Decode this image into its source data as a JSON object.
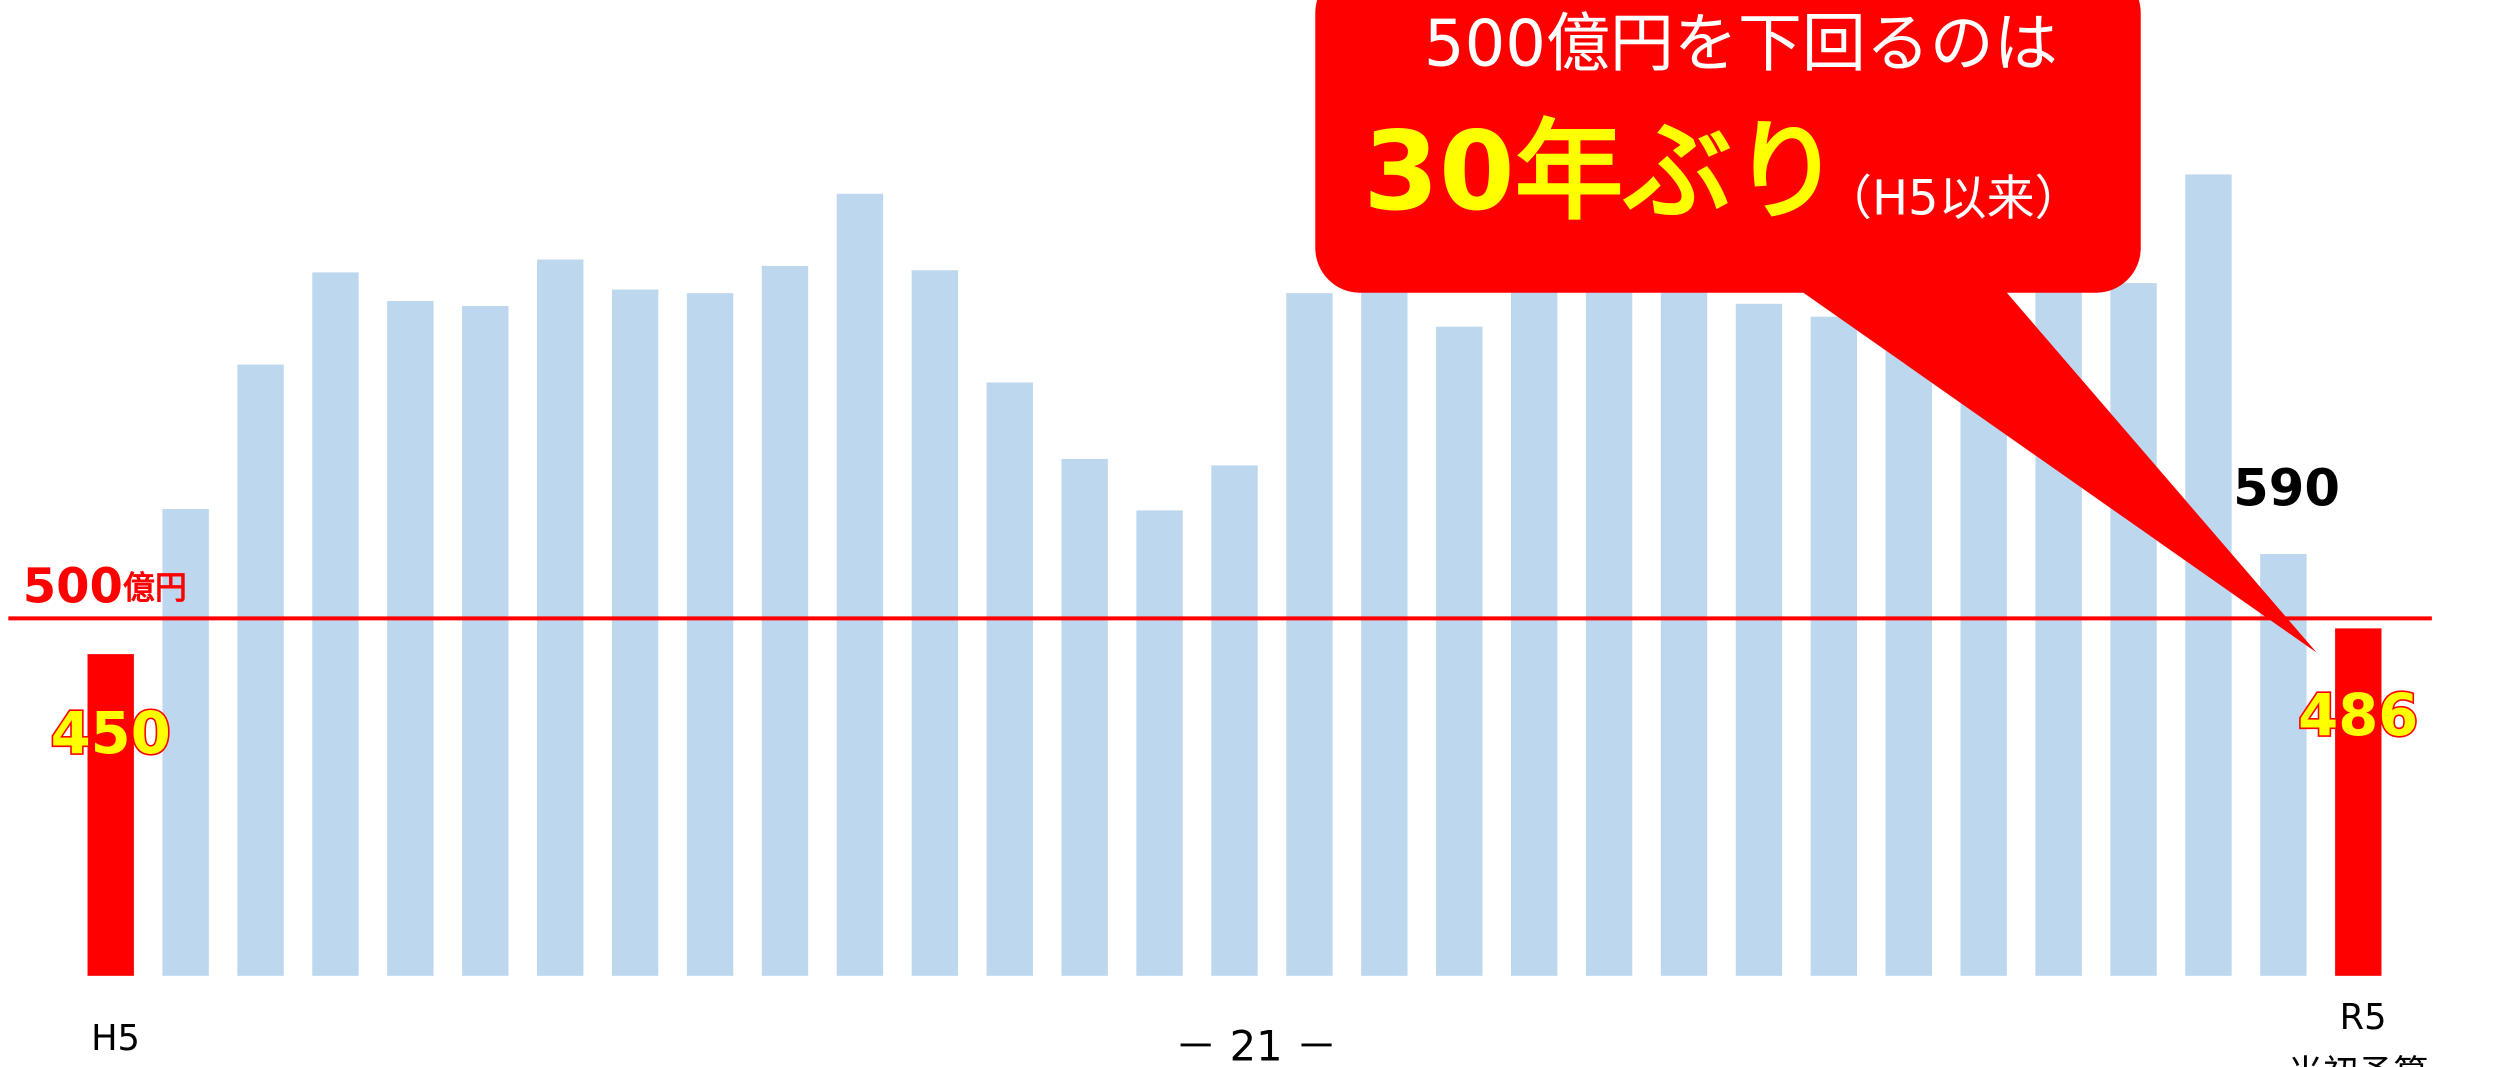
{
  "chart_data": {
    "type": "bar",
    "categories": [
      "H5",
      null,
      null,
      null,
      null,
      null,
      null,
      null,
      null,
      null,
      null,
      null,
      null,
      null,
      null,
      null,
      null,
      null,
      null,
      null,
      null,
      null,
      null,
      null,
      null,
      null,
      null,
      null,
      null,
      null,
      "R5"
    ],
    "values": [
      450,
      653,
      855,
      984,
      944,
      937,
      1002,
      960,
      955,
      993,
      1094,
      987,
      830,
      723,
      651,
      714,
      955,
      973,
      908,
      962,
      962,
      962,
      940,
      922,
      900,
      930,
      962,
      969,
      1121,
      590,
      486
    ],
    "value_labels": [
      "450",
      null,
      null,
      null,
      null,
      null,
      null,
      null,
      null,
      null,
      null,
      null,
      null,
      null,
      null,
      null,
      null,
      null,
      null,
      null,
      null,
      null,
      null,
      null,
      null,
      null,
      null,
      null,
      null,
      "590",
      "486"
    ],
    "colors": [
      "#ff0000",
      "#bdd7ee",
      "#bdd7ee",
      "#bdd7ee",
      "#bdd7ee",
      "#bdd7ee",
      "#bdd7ee",
      "#bdd7ee",
      "#bdd7ee",
      "#bdd7ee",
      "#bdd7ee",
      "#bdd7ee",
      "#bdd7ee",
      "#bdd7ee",
      "#bdd7ee",
      "#bdd7ee",
      "#bdd7ee",
      "#bdd7ee",
      "#bdd7ee",
      "#bdd7ee",
      "#bdd7ee",
      "#bdd7ee",
      "#bdd7ee",
      "#bdd7ee",
      "#bdd7ee",
      "#bdd7ee",
      "#bdd7ee",
      "#bdd7ee",
      "#bdd7ee",
      "#bdd7ee",
      "#ff0000"
    ],
    "ylim": [
      0,
      1365
    ],
    "reference_line": {
      "value": 500,
      "label": "500億円",
      "color": "#ff0000"
    },
    "last_category_note": "当初予算",
    "callout": {
      "line1": "500億円を下回るのは",
      "highlight": "30年ぶり",
      "note": "（H5以来）"
    },
    "page_number": "－ 21 －"
  }
}
